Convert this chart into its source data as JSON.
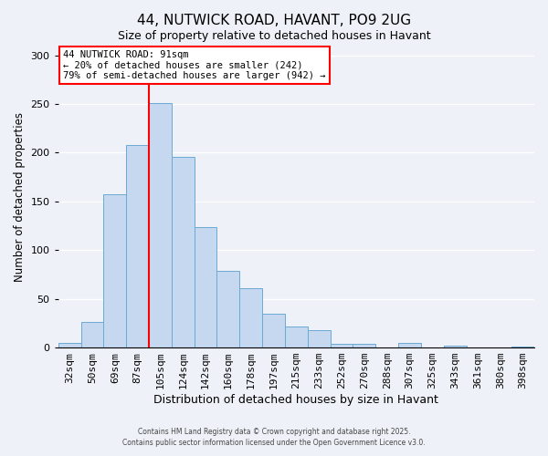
{
  "title": "44, NUTWICK ROAD, HAVANT, PO9 2UG",
  "subtitle": "Size of property relative to detached houses in Havant",
  "xlabel": "Distribution of detached houses by size in Havant",
  "ylabel": "Number of detached properties",
  "bar_labels": [
    "32sqm",
    "50sqm",
    "69sqm",
    "87sqm",
    "105sqm",
    "124sqm",
    "142sqm",
    "160sqm",
    "178sqm",
    "197sqm",
    "215sqm",
    "233sqm",
    "252sqm",
    "270sqm",
    "288sqm",
    "307sqm",
    "325sqm",
    "343sqm",
    "361sqm",
    "380sqm",
    "398sqm"
  ],
  "bar_values": [
    5,
    26,
    157,
    208,
    251,
    196,
    124,
    79,
    61,
    35,
    22,
    18,
    4,
    4,
    0,
    5,
    0,
    2,
    0,
    0,
    1
  ],
  "bar_color": "#c5d8f0",
  "bar_edge_color": "#6aaad4",
  "vline_index": 4,
  "vline_color": "red",
  "annotation_title": "44 NUTWICK ROAD: 91sqm",
  "annotation_line1": "← 20% of detached houses are smaller (242)",
  "annotation_line2": "79% of semi-detached houses are larger (942) →",
  "annotation_box_color": "red",
  "ylim": [
    0,
    310
  ],
  "yticks": [
    0,
    50,
    100,
    150,
    200,
    250,
    300
  ],
  "footer_line1": "Contains HM Land Registry data © Crown copyright and database right 2025.",
  "footer_line2": "Contains public sector information licensed under the Open Government Licence v3.0.",
  "background_color": "#eef2f8",
  "plot_background_color": "#eef2f8",
  "grid_color": "#ffffff",
  "title_fontsize": 11,
  "subtitle_fontsize": 9
}
